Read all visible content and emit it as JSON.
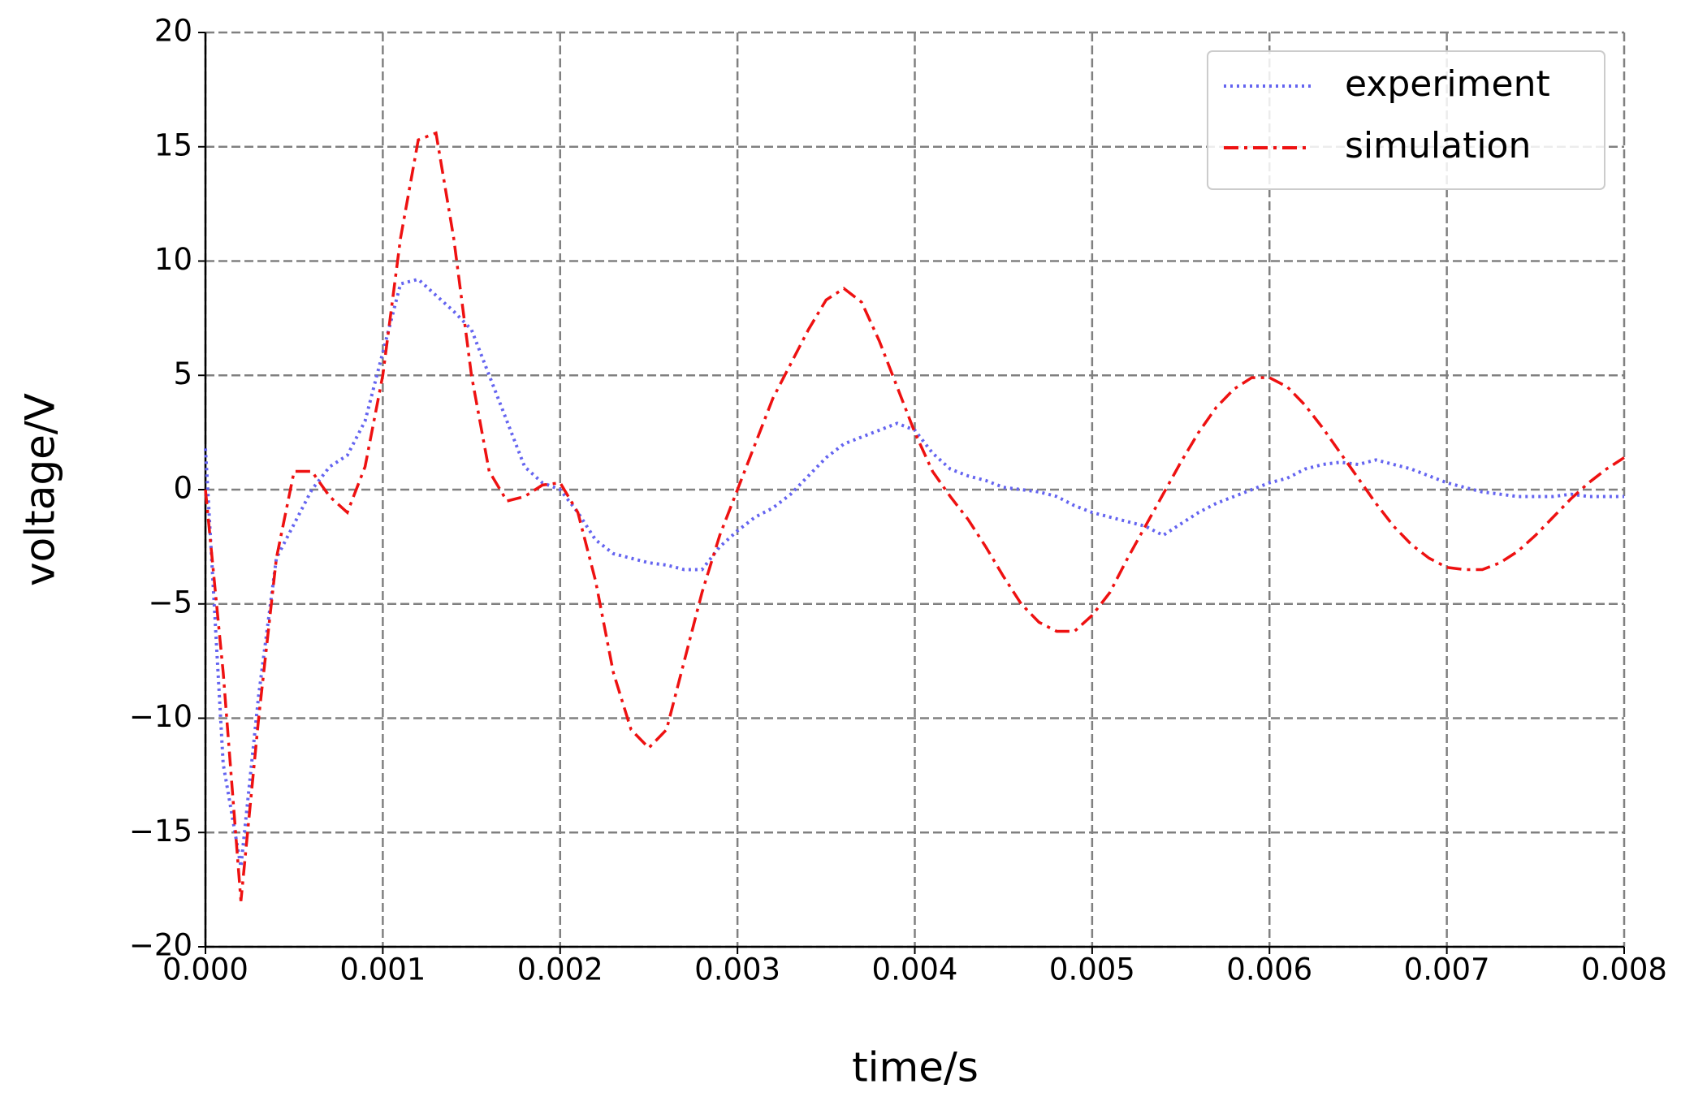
{
  "chart_data": {
    "type": "line",
    "xlabel": "time/s",
    "ylabel": "voltage/V",
    "x": [
      0,
      0.0001,
      0.0002,
      0.0003,
      0.0004,
      0.0005,
      0.0006,
      0.0007,
      0.0008,
      0.0009,
      0.001,
      0.0011,
      0.0012,
      0.0013,
      0.0014,
      0.0015,
      0.0016,
      0.0017,
      0.0018,
      0.0019,
      0.002,
      0.0021,
      0.0022,
      0.0023,
      0.0024,
      0.0025,
      0.0026,
      0.0027,
      0.0028,
      0.0029,
      0.003,
      0.0031,
      0.0032,
      0.0033,
      0.0034,
      0.0035,
      0.0036,
      0.0037,
      0.0038,
      0.0039,
      0.004,
      0.0041,
      0.0042,
      0.0043,
      0.0044,
      0.0045,
      0.0046,
      0.0047,
      0.0048,
      0.0049,
      0.005,
      0.0051,
      0.0052,
      0.0053,
      0.0054,
      0.0055,
      0.0056,
      0.0057,
      0.0058,
      0.0059,
      0.006,
      0.0061,
      0.0062,
      0.0063,
      0.0064,
      0.0065,
      0.0066,
      0.0067,
      0.0068,
      0.0069,
      0.007,
      0.0071,
      0.0072,
      0.0073,
      0.0074,
      0.0075,
      0.0076,
      0.0077,
      0.0078,
      0.0079,
      0.008
    ],
    "series": [
      {
        "name": "experiment",
        "color": "#6464f0",
        "linestyle": "dotted",
        "values": [
          1.8,
          -12,
          -16.5,
          -9,
          -3,
          -1.5,
          0,
          1,
          1.5,
          3,
          6,
          9,
          9.2,
          8.5,
          7.8,
          7,
          5,
          3,
          1,
          0.3,
          0,
          -1,
          -2.2,
          -2.8,
          -3,
          -3.2,
          -3.3,
          -3.5,
          -3.5,
          -2.5,
          -1.8,
          -1.2,
          -0.8,
          -0.2,
          0.6,
          1.4,
          2,
          2.3,
          2.6,
          2.9,
          2.6,
          1.6,
          0.9,
          0.6,
          0.4,
          0.1,
          0,
          -0.1,
          -0.3,
          -0.7,
          -1,
          -1.2,
          -1.4,
          -1.6,
          -2,
          -1.5,
          -1,
          -0.6,
          -0.3,
          0,
          0.3,
          0.5,
          0.9,
          1.1,
          1.2,
          1.1,
          1.3,
          1.1,
          0.9,
          0.6,
          0.3,
          0.1,
          -0.1,
          -0.2,
          -0.3,
          -0.3,
          -0.3,
          -0.2,
          -0.3,
          -0.3,
          -0.3
        ]
      },
      {
        "name": "simulation",
        "color": "#ee1111",
        "linestyle": "dashdot",
        "values": [
          0,
          -8,
          -18,
          -10,
          -3,
          0.8,
          0.8,
          -0.3,
          -1,
          1,
          5,
          11,
          15.3,
          15.6,
          11,
          5,
          0.8,
          -0.5,
          -0.3,
          0.2,
          0.3,
          -1,
          -4,
          -8,
          -10.5,
          -11.3,
          -10.5,
          -7.5,
          -4.5,
          -2,
          0,
          2,
          4,
          5.5,
          7,
          8.3,
          8.8,
          8.2,
          6.5,
          4.5,
          2.5,
          0.8,
          -0.3,
          -1.3,
          -2.5,
          -3.8,
          -5,
          -5.8,
          -6.2,
          -6.2,
          -5.5,
          -4.5,
          -3,
          -1.6,
          -0.2,
          1.2,
          2.5,
          3.6,
          4.4,
          4.9,
          4.9,
          4.5,
          3.7,
          2.7,
          1.6,
          0.5,
          -0.6,
          -1.6,
          -2.4,
          -3,
          -3.4,
          -3.5,
          -3.5,
          -3.2,
          -2.7,
          -2,
          -1.2,
          -0.4,
          0.3,
          0.9,
          1.4
        ]
      }
    ],
    "xlim": [
      0,
      0.008
    ],
    "xticks": [
      {
        "value": 0,
        "label": "0.000"
      },
      {
        "value": 0.001,
        "label": "0.001"
      },
      {
        "value": 0.002,
        "label": "0.002"
      },
      {
        "value": 0.003,
        "label": "0.003"
      },
      {
        "value": 0.004,
        "label": "0.004"
      },
      {
        "value": 0.005,
        "label": "0.005"
      },
      {
        "value": 0.006,
        "label": "0.006"
      },
      {
        "value": 0.007,
        "label": "0.007"
      },
      {
        "value": 0.008,
        "label": "0.008"
      }
    ],
    "ylim": [
      -20,
      20
    ],
    "yticks": [
      {
        "value": -20,
        "label": "−20"
      },
      {
        "value": -15,
        "label": "−15"
      },
      {
        "value": -10,
        "label": "−10"
      },
      {
        "value": -5,
        "label": "−5"
      },
      0,
      5,
      10,
      15,
      20
    ],
    "grid": true,
    "legend": "upper right"
  }
}
